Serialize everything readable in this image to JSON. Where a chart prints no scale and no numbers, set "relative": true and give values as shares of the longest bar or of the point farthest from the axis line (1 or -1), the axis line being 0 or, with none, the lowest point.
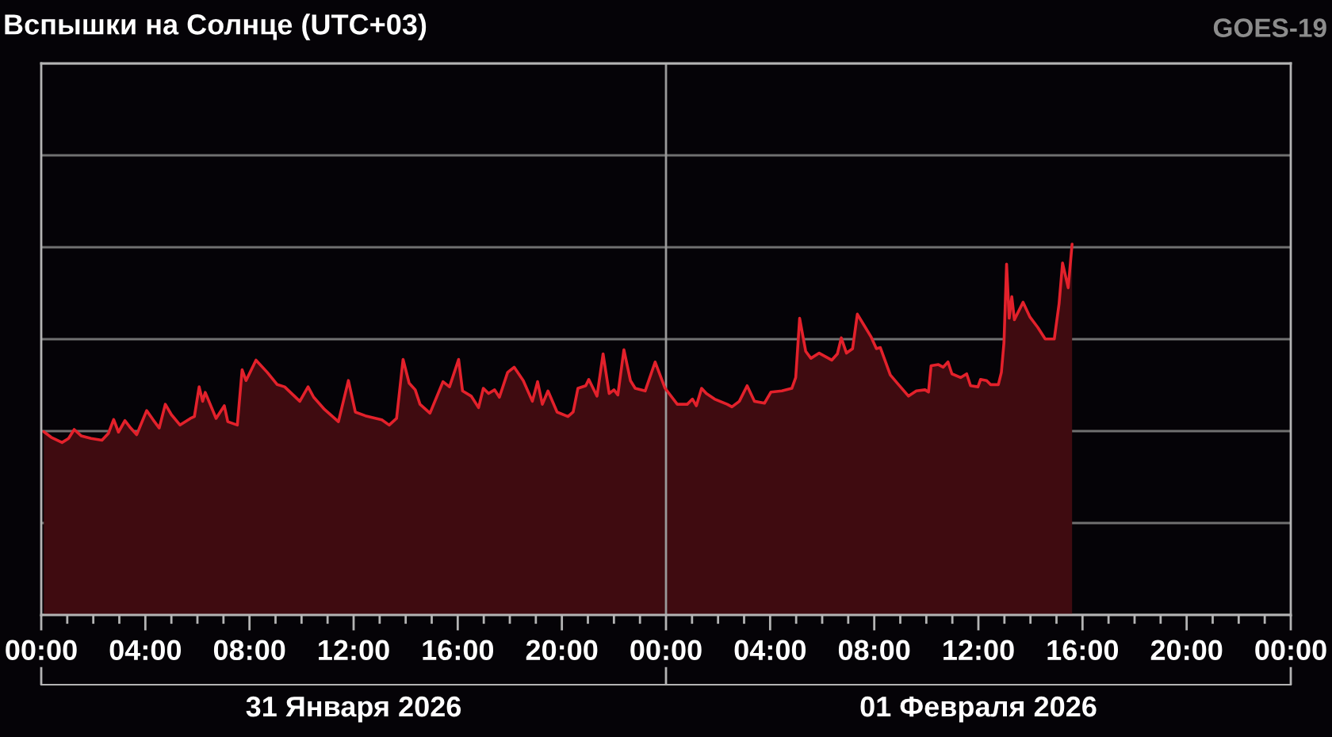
{
  "chart_data": {
    "type": "area",
    "title": "Вспышки на Солнце (UTC+03)",
    "annotations": [
      "GOES-19"
    ],
    "relative": true,
    "grid": "y",
    "x": [
      "2026-01-31T00:06",
      "2026-01-31T00:23",
      "2026-01-31T00:48",
      "2026-01-31T01:03",
      "2026-01-31T01:16",
      "2026-01-31T01:32",
      "2026-01-31T01:55",
      "2026-01-31T02:20",
      "2026-01-31T02:35",
      "2026-01-31T02:47",
      "2026-01-31T02:58",
      "2026-01-31T03:13",
      "2026-01-31T03:24",
      "2026-01-31T03:40",
      "2026-01-31T04:03",
      "2026-01-31T04:18",
      "2026-01-31T04:32",
      "2026-01-31T04:46",
      "2026-01-31T05:00",
      "2026-01-31T05:20",
      "2026-01-31T05:44",
      "2026-01-31T05:53",
      "2026-01-31T06:04",
      "2026-01-31T06:12",
      "2026-01-31T06:18",
      "2026-01-31T06:43",
      "2026-01-31T07:02",
      "2026-01-31T07:10",
      "2026-01-31T07:32",
      "2026-01-31T07:43",
      "2026-01-31T07:52",
      "2026-01-31T08:15",
      "2026-01-31T08:41",
      "2026-01-31T09:04",
      "2026-01-31T09:21",
      "2026-01-31T09:56",
      "2026-01-31T10:15",
      "2026-01-31T10:28",
      "2026-01-31T10:53",
      "2026-01-31T11:25",
      "2026-01-31T11:48",
      "2026-01-31T12:04",
      "2026-01-31T12:27",
      "2026-01-31T13:05",
      "2026-01-31T13:22",
      "2026-01-31T13:39",
      "2026-01-31T13:54",
      "2026-01-31T14:08",
      "2026-01-31T14:22",
      "2026-01-31T14:33",
      "2026-01-31T14:56",
      "2026-01-31T15:26",
      "2026-01-31T15:41",
      "2026-01-31T16:02",
      "2026-01-31T16:11",
      "2026-01-31T16:31",
      "2026-01-31T16:48",
      "2026-01-31T16:59",
      "2026-01-31T17:11",
      "2026-01-31T17:25",
      "2026-01-31T17:36",
      "2026-01-31T17:55",
      "2026-01-31T18:10",
      "2026-01-31T18:31",
      "2026-01-31T18:52",
      "2026-01-31T19:04",
      "2026-01-31T19:15",
      "2026-01-31T19:28",
      "2026-01-31T19:49",
      "2026-01-31T20:14",
      "2026-01-31T20:26",
      "2026-01-31T20:37",
      "2026-01-31T20:55",
      "2026-01-31T21:02",
      "2026-01-31T21:21",
      "2026-01-31T21:35",
      "2026-01-31T21:49",
      "2026-01-31T22:00",
      "2026-01-31T22:09",
      "2026-01-31T22:23",
      "2026-01-31T22:38",
      "2026-01-31T22:49",
      "2026-01-31T23:12",
      "2026-01-31T23:35",
      "2026-01-31T23:58",
      "2026-02-01T00:26",
      "2026-02-01T00:49",
      "2026-02-01T01:01",
      "2026-02-01T01:10",
      "2026-02-01T01:22",
      "2026-02-01T01:33",
      "2026-02-01T01:52",
      "2026-02-01T02:21",
      "2026-02-01T02:32",
      "2026-02-01T02:49",
      "2026-02-01T03:07",
      "2026-02-01T03:24",
      "2026-02-01T03:47",
      "2026-02-01T04:02",
      "2026-02-01T04:27",
      "2026-02-01T04:50",
      "2026-02-01T04:59",
      "2026-02-01T05:08",
      "2026-02-01T05:22",
      "2026-02-01T05:34",
      "2026-02-01T05:53",
      "2026-02-01T06:22",
      "2026-02-01T06:35",
      "2026-02-01T06:44",
      "2026-02-01T06:56",
      "2026-02-01T07:10",
      "2026-02-01T07:21",
      "2026-02-01T07:36",
      "2026-02-01T07:53",
      "2026-02-01T08:05",
      "2026-02-01T08:14",
      "2026-02-01T08:37",
      "2026-02-01T08:56",
      "2026-02-01T09:19",
      "2026-02-01T09:37",
      "2026-02-01T09:57",
      "2026-02-01T10:05",
      "2026-02-01T10:11",
      "2026-02-01T10:28",
      "2026-02-01T10:39",
      "2026-02-01T10:50",
      "2026-02-01T10:59",
      "2026-02-01T11:19",
      "2026-02-01T11:33",
      "2026-02-01T11:42",
      "2026-02-01T11:59",
      "2026-02-01T12:05",
      "2026-02-01T12:19",
      "2026-02-01T12:28",
      "2026-02-01T12:46",
      "2026-02-01T12:53",
      "2026-02-01T12:59",
      "2026-02-01T13:05",
      "2026-02-01T13:11",
      "2026-02-01T13:17",
      "2026-02-01T13:23",
      "2026-02-01T13:43",
      "2026-02-01T13:59",
      "2026-02-01T14:17",
      "2026-02-01T14:34",
      "2026-02-01T14:55",
      "2026-02-01T15:06",
      "2026-02-01T15:14",
      "2026-02-01T15:27",
      "2026-02-01T15:36"
    ],
    "series": [
      {
        "color": "#e3212b",
        "values": [
          0.494,
          0.479,
          0.465,
          0.476,
          0.5,
          0.483,
          0.476,
          0.471,
          0.49,
          0.527,
          0.493,
          0.524,
          0.507,
          0.486,
          0.551,
          0.526,
          0.504,
          0.568,
          0.54,
          0.512,
          0.53,
          0.535,
          0.615,
          0.576,
          0.6,
          0.53,
          0.564,
          0.521,
          0.512,
          0.661,
          0.632,
          0.687,
          0.654,
          0.621,
          0.615,
          0.576,
          0.615,
          0.587,
          0.554,
          0.521,
          0.632,
          0.547,
          0.537,
          0.526,
          0.512,
          0.53,
          0.689,
          0.625,
          0.607,
          0.568,
          0.544,
          0.629,
          0.615,
          0.689,
          0.604,
          0.59,
          0.559,
          0.611,
          0.597,
          0.607,
          0.587,
          0.654,
          0.668,
          0.632,
          0.576,
          0.629,
          0.568,
          0.604,
          0.547,
          0.535,
          0.547,
          0.611,
          0.618,
          0.635,
          0.59,
          0.704,
          0.597,
          0.607,
          0.593,
          0.715,
          0.632,
          0.611,
          0.604,
          0.682,
          0.611,
          0.568,
          0.568,
          0.582,
          0.564,
          0.611,
          0.597,
          0.582,
          0.568,
          0.561,
          0.576,
          0.618,
          0.576,
          0.571,
          0.601,
          0.604,
          0.611,
          0.64,
          0.8,
          0.711,
          0.692,
          0.706,
          0.687,
          0.704,
          0.747,
          0.706,
          0.718,
          0.811,
          0.782,
          0.749,
          0.718,
          0.721,
          0.647,
          0.621,
          0.59,
          0.604,
          0.607,
          0.601,
          0.672,
          0.675,
          0.668,
          0.682,
          0.65,
          0.64,
          0.65,
          0.618,
          0.615,
          0.635,
          0.632,
          0.621,
          0.621,
          0.654,
          0.735,
          0.946,
          0.8,
          0.858,
          0.796,
          0.843,
          0.803,
          0.775,
          0.744,
          0.744,
          0.839,
          0.949,
          0.882,
          1.0
        ]
      }
    ],
    "xlim": [
      "2026-01-31T00:00",
      "2026-02-02T00:00"
    ],
    "xticks": [
      {
        "value": "2026-01-31T00:00",
        "label": "00:00"
      },
      {
        "value": "2026-01-31T04:00",
        "label": "04:00"
      },
      {
        "value": "2026-01-31T08:00",
        "label": "08:00"
      },
      {
        "value": "2026-01-31T12:00",
        "label": "12:00"
      },
      {
        "value": "2026-01-31T16:00",
        "label": "16:00"
      },
      {
        "value": "2026-01-31T20:00",
        "label": "20:00"
      },
      {
        "value": "2026-02-01T00:00",
        "label": "00:00"
      },
      {
        "value": "2026-02-01T04:00",
        "label": "04:00"
      },
      {
        "value": "2026-02-01T08:00",
        "label": "08:00"
      },
      {
        "value": "2026-02-01T12:00",
        "label": "12:00"
      },
      {
        "value": "2026-02-01T16:00",
        "label": "16:00"
      },
      {
        "value": "2026-02-01T20:00",
        "label": "20:00"
      },
      {
        "value": "2026-02-02T00:00",
        "label": "00:00"
      }
    ],
    "x2lim": [
      "2026-01-31T00:00",
      "2026-02-02T00:00"
    ],
    "x2ticks": [
      {
        "value": "2026-01-31T00:00",
        "label": null
      },
      {
        "value": "2026-01-31T12:00",
        "label": "31 Января 2026"
      },
      {
        "value": "2026-02-01T00:00",
        "label": null
      },
      {
        "value": "2026-02-01T12:00",
        "label": "01 Февраля 2026"
      },
      {
        "value": "2026-02-02T00:00",
        "label": null
      }
    ],
    "ref_lines": [
      {
        "axis": "x",
        "value": "2026-02-01T00:00",
        "color": "#9a9a9a"
      }
    ]
  }
}
